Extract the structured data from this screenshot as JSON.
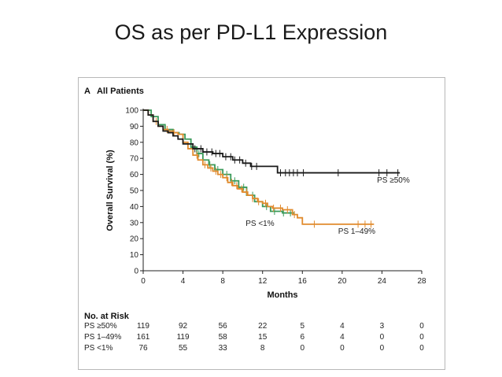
{
  "slide": {
    "title": "OS as per PD-L1 Expression"
  },
  "panel": {
    "letter": "A",
    "title": "All Patients"
  },
  "colors": {
    "ps50": "#1a1a1a",
    "ps1_49": "#e08a2c",
    "ps_lt1": "#3a9a5a",
    "axis": "#222222"
  },
  "chart_data": {
    "type": "line",
    "subtype": "kaplan-meier step",
    "xlabel": "Months",
    "ylabel": "Overall Survival (%)",
    "xlim": [
      0,
      28
    ],
    "ylim": [
      0,
      100
    ],
    "xticks": [
      0,
      4,
      8,
      12,
      16,
      20,
      24,
      28
    ],
    "yticks": [
      0,
      10,
      20,
      30,
      40,
      50,
      60,
      70,
      80,
      90,
      100
    ],
    "grid": false,
    "series": [
      {
        "name": "PS ≥50%",
        "color": "#1a1a1a",
        "x": [
          0,
          0.5,
          1,
          1.5,
          2,
          2.5,
          3,
          3.5,
          4,
          5,
          6,
          7,
          8,
          9,
          10,
          10.8,
          11.5,
          13.5,
          25.8
        ],
        "y": [
          100,
          97,
          93,
          90,
          87,
          86,
          84,
          82,
          79,
          76,
          74,
          73,
          71,
          69,
          67,
          65,
          65,
          61,
          61
        ],
        "censor_x": [
          5.2,
          5.8,
          6.4,
          6.9,
          7.3,
          7.7,
          8.3,
          8.8,
          9.2,
          9.7,
          10.3,
          10.9,
          11.4,
          13.8,
          14.3,
          14.7,
          15.1,
          15.5,
          16.1,
          19.6,
          23.7,
          24.5,
          25.6
        ]
      },
      {
        "name": "PS 1–49%",
        "color": "#e08a2c",
        "x": [
          0,
          0.5,
          1,
          1.5,
          2,
          2.5,
          3,
          3.5,
          4,
          4.5,
          5,
          5.5,
          6,
          6.5,
          7,
          7.5,
          8,
          8.5,
          9,
          9.5,
          10,
          10.5,
          11,
          11.5,
          12,
          12.5,
          13,
          14,
          15,
          15.5,
          16,
          23.2
        ],
        "y": [
          100,
          97,
          93,
          90,
          88,
          87,
          86,
          85,
          80,
          76,
          72,
          69,
          66,
          64,
          62,
          60,
          58,
          55,
          53,
          51,
          49,
          47,
          45,
          43,
          42,
          40,
          39,
          38,
          35,
          33,
          29,
          29
        ],
        "censor_x": [
          1.3,
          2.4,
          3.1,
          5.4,
          6.2,
          6.8,
          7.3,
          7.8,
          8.4,
          8.9,
          9.4,
          9.9,
          10.4,
          11.0,
          11.6,
          12.3,
          13.1,
          13.8,
          14.5,
          15.2,
          17.2,
          21.6,
          22.3,
          22.9
        ]
      },
      {
        "name": "PS <1%",
        "color": "#3a9a5a",
        "x": [
          0,
          0.8,
          1.5,
          2.2,
          3,
          3.6,
          4.2,
          4.8,
          5.4,
          6,
          6.6,
          7.2,
          8,
          8.8,
          9.6,
          10.4,
          11.2,
          12,
          12.8,
          14,
          15.2
        ],
        "y": [
          100,
          96,
          91,
          88,
          86,
          85,
          82,
          77,
          73,
          69,
          66,
          63,
          60,
          56,
          52,
          47,
          43,
          40,
          37,
          36,
          36
        ],
        "censor_x": [
          5.6,
          6.7,
          7.5,
          8.4,
          9.2,
          10.1,
          11.0,
          12.4,
          13.2,
          14.1,
          14.8
        ]
      }
    ],
    "annotations": [
      {
        "text": "PS ≥50%",
        "x": 23.5,
        "y": 55
      },
      {
        "text": "PS 1–49%",
        "x": 19.6,
        "y": 23
      },
      {
        "text": "PS <1%",
        "x": 10.3,
        "y": 28
      }
    ]
  },
  "risk_table": {
    "heading": "No. at Risk",
    "timepoints": [
      0,
      4,
      8,
      12,
      16,
      20,
      24,
      28
    ],
    "rows": [
      {
        "label": "PS ≥50%",
        "values": [
          "119",
          "92",
          "56",
          "22",
          "5",
          "4",
          "3",
          "0"
        ]
      },
      {
        "label": "PS 1–49%",
        "values": [
          "161",
          "119",
          "58",
          "15",
          "6",
          "4",
          "0",
          "0"
        ]
      },
      {
        "label": "PS <1%",
        "values": [
          "76",
          "55",
          "33",
          "8",
          "0",
          "0",
          "0",
          "0"
        ]
      }
    ]
  }
}
